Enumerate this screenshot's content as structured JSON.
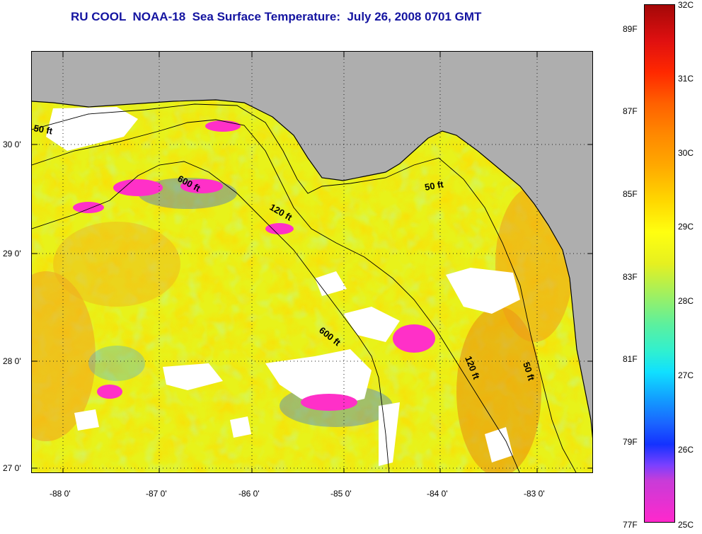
{
  "title": "RU COOL  NOAA-18  Sea Surface Temperature:  July 26, 2008 0701 GMT",
  "map": {
    "lat_labels": [
      "30 0'",
      "29 0'",
      "28 0'",
      "27 0'"
    ],
    "lon_labels": [
      "-88 0'",
      "-87 0'",
      "-86 0'",
      "-85 0'",
      "-84 0'",
      "-83 0'"
    ],
    "isobath_labels": [
      "50 ft",
      "600 ft",
      "120 ft",
      "50 ft",
      "600 ft",
      "120 ft",
      "50 ft"
    ],
    "land_color": "#aeaeae",
    "cloud_color": "#ffffff",
    "grid_style": "dotted"
  },
  "colorbar": {
    "celsius_labels": [
      "32C",
      "31C",
      "30C",
      "29C",
      "28C",
      "27C",
      "26C",
      "25C"
    ],
    "fahrenheit_labels": [
      "89F",
      "87F",
      "85F",
      "83F",
      "81F",
      "79F",
      "77F"
    ],
    "scale_min_c": 25,
    "scale_max_c": 32
  }
}
